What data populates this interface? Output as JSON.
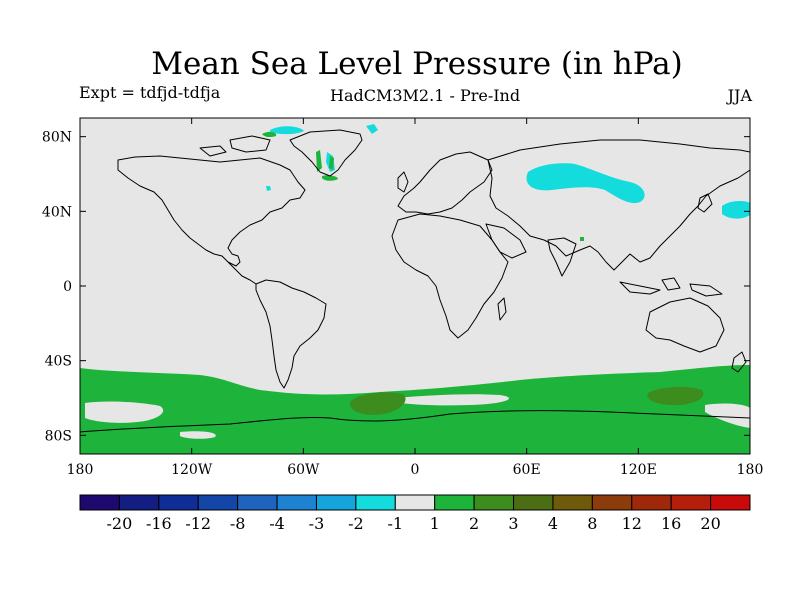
{
  "figure": {
    "title": "Mean Sea Level Pressure (in hPa)",
    "experiment": "Expt = tdfjd-tdfja",
    "model": "HadCM3M2.1 - Pre-Ind",
    "season": "JJA"
  },
  "chart_data": {
    "type": "heatmap",
    "title": "Mean Sea Level Pressure (in hPa)",
    "projection": "cylindrical equidistant",
    "xlim": [
      -180,
      180
    ],
    "ylim": [
      -90,
      90
    ],
    "x_ticks": [
      {
        "value": -180,
        "label": "180"
      },
      {
        "value": -120,
        "label": "120W"
      },
      {
        "value": -60,
        "label": "60W"
      },
      {
        "value": 0,
        "label": "0"
      },
      {
        "value": 60,
        "label": "60E"
      },
      {
        "value": 120,
        "label": "120E"
      },
      {
        "value": 180,
        "label": "180"
      }
    ],
    "y_ticks": [
      {
        "value": 80,
        "label": "80N"
      },
      {
        "value": 40,
        "label": "40N"
      },
      {
        "value": 0,
        "label": "0"
      },
      {
        "value": -40,
        "label": "40S"
      },
      {
        "value": -80,
        "label": "80S"
      }
    ],
    "colorbar": {
      "levels": [
        "-20",
        "-16",
        "-12",
        "-8",
        "-4",
        "-3",
        "-2",
        "-1",
        "1",
        "2",
        "3",
        "4",
        "8",
        "12",
        "16",
        "20"
      ],
      "colors": [
        "#1e0a6e",
        "#141e82",
        "#0f2d96",
        "#1446aa",
        "#1e64be",
        "#1e82d2",
        "#14a5dc",
        "#14dcdc",
        "#e6e6e6",
        "#1eb43c",
        "#3c8c1e",
        "#4b6e14",
        "#6e5a0a",
        "#8c3c0a",
        "#a0280a",
        "#b41e0a",
        "#c80a0a"
      ]
    },
    "shaded_regions": [
      {
        "range": "1 to 2",
        "color": "#1eb43c",
        "area": "Southern Ocean band 40S-90S"
      },
      {
        "range": "2 to 3",
        "color": "#3c8c1e",
        "area": "South Atlantic near 20W 60S"
      },
      {
        "range": "2 to 3",
        "color": "#3c8c1e",
        "area": "South Indian near 140E 55S"
      },
      {
        "range": "-2 to -1",
        "color": "#14dcdc",
        "area": "Siberia near 60E-100E 55N"
      },
      {
        "range": "-2 to -1",
        "color": "#14dcdc",
        "area": "Northwest Pacific near 170E 40N"
      },
      {
        "range": "-2 to -1",
        "color": "#14dcdc",
        "area": "Greenland coast patches"
      }
    ]
  }
}
